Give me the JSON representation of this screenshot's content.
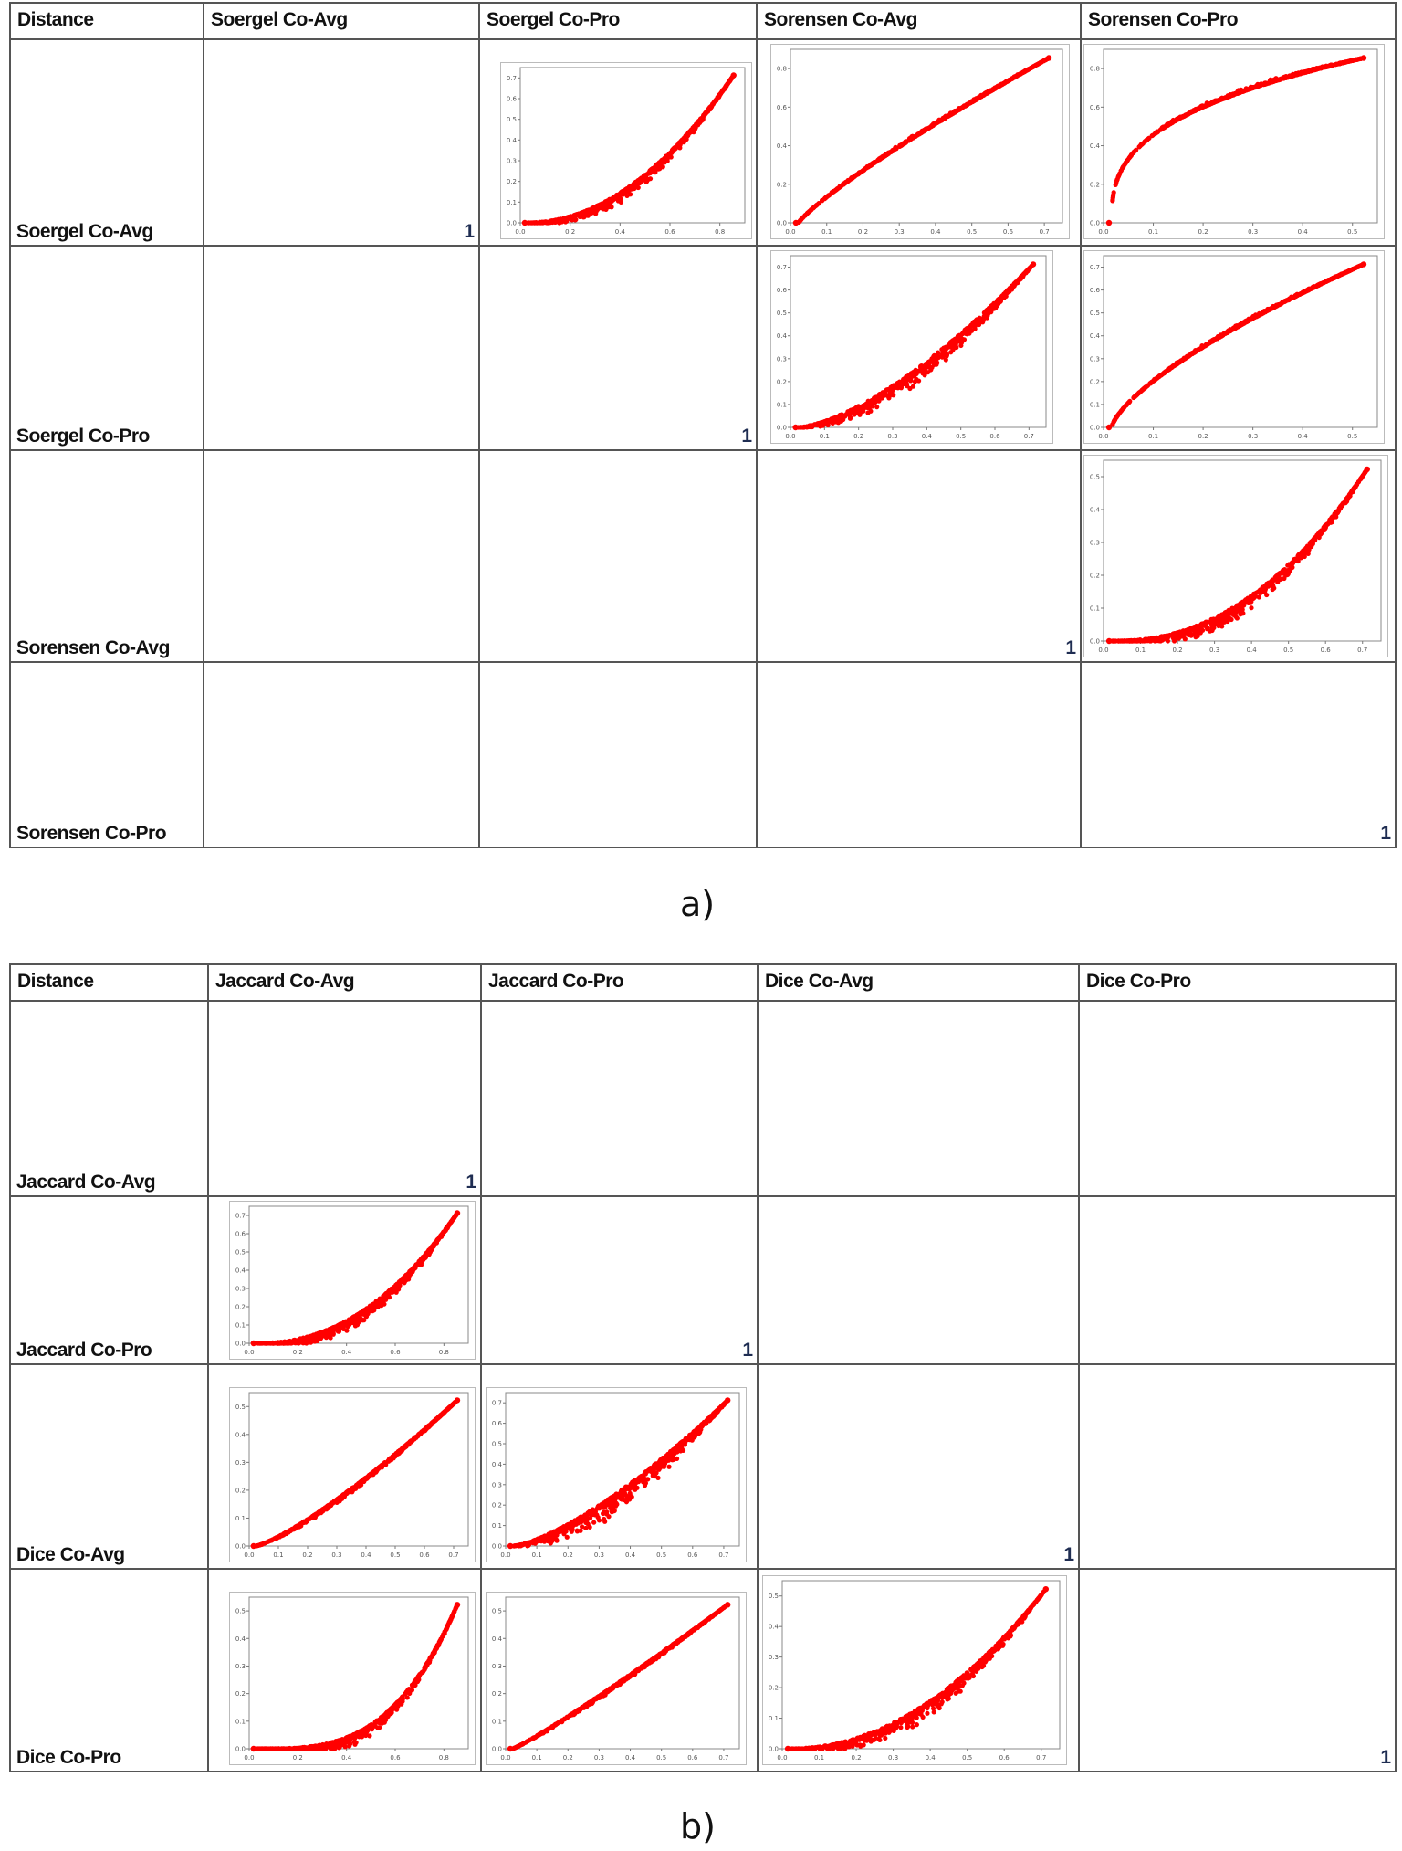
{
  "panels": [
    {
      "caption": "a)",
      "corner": "Distance",
      "columns": [
        "Soergel Co-Avg",
        "Soergel Co-Pro",
        "Sorensen Co-Avg",
        "Sorensen Co-Pro"
      ],
      "rows": [
        "Soergel Co-Avg",
        "Soergel Co-Pro",
        "Sorensen Co-Avg",
        "Sorensen Co-Pro"
      ],
      "diagonal_value": "1",
      "marker_color": "#ff0000"
    },
    {
      "caption": "b)",
      "corner": "Distance",
      "columns": [
        "Jaccard Co-Avg",
        "Jaccard Co-Pro",
        "Dice Co-Avg",
        "Dice Co-Pro"
      ],
      "rows": [
        "Jaccard Co-Avg",
        "Jaccard Co-Pro",
        "Dice Co-Avg",
        "Dice Co-Pro"
      ],
      "diagonal_value": "1",
      "marker_color": "#ff0000"
    }
  ],
  "chart_data": [
    {
      "type": "scatter",
      "panel": "a",
      "row": "Soergel Co-Avg",
      "col": "Soergel Co-Pro",
      "curve": "convex",
      "exponent": 2.0,
      "spread": 0.07,
      "xlim": [
        0,
        0.9
      ],
      "ylim": [
        0,
        0.75
      ],
      "xticks": [
        "0.0",
        "0.2",
        "0.4",
        "0.6",
        "0.8"
      ],
      "yticks": [
        "0.0",
        "0.1",
        "0.2",
        "0.3",
        "0.4",
        "0.5",
        "0.6",
        "0.7"
      ]
    },
    {
      "type": "scatter",
      "panel": "a",
      "row": "Soergel Co-Avg",
      "col": "Sorensen Co-Avg",
      "curve": "concave",
      "exponent": 0.85,
      "spread": 0.03,
      "xlim": [
        0,
        0.75
      ],
      "ylim": [
        0,
        0.9
      ],
      "xticks": [
        "0.0",
        "0.1",
        "0.2",
        "0.3",
        "0.4",
        "0.5",
        "0.6",
        "0.7"
      ],
      "yticks": [
        "0.0",
        "0.2",
        "0.4",
        "0.6",
        "0.8"
      ]
    },
    {
      "type": "scatter",
      "panel": "a",
      "row": "Soergel Co-Avg",
      "col": "Sorensen Co-Pro",
      "curve": "concave",
      "exponent": 0.35,
      "spread": 0.04,
      "xlim": [
        0,
        0.55
      ],
      "ylim": [
        0,
        0.9
      ],
      "xticks": [
        "0.0",
        "0.1",
        "0.2",
        "0.3",
        "0.4",
        "0.5"
      ],
      "yticks": [
        "0.0",
        "0.2",
        "0.4",
        "0.6",
        "0.8"
      ]
    },
    {
      "type": "scatter",
      "panel": "a",
      "row": "Soergel Co-Pro",
      "col": "Sorensen Co-Avg",
      "curve": "convex",
      "exponent": 1.5,
      "spread": 0.1,
      "xlim": [
        0,
        0.75
      ],
      "ylim": [
        0,
        0.75
      ],
      "xticks": [
        "0.0",
        "0.1",
        "0.2",
        "0.3",
        "0.4",
        "0.5",
        "0.6",
        "0.7"
      ],
      "yticks": [
        "0.0",
        "0.1",
        "0.2",
        "0.3",
        "0.4",
        "0.5",
        "0.6",
        "0.7"
      ]
    },
    {
      "type": "scatter",
      "panel": "a",
      "row": "Soergel Co-Pro",
      "col": "Sorensen Co-Pro",
      "curve": "concave",
      "exponent": 0.7,
      "spread": 0.03,
      "xlim": [
        0,
        0.55
      ],
      "ylim": [
        0,
        0.75
      ],
      "xticks": [
        "0.0",
        "0.1",
        "0.2",
        "0.3",
        "0.4",
        "0.5"
      ],
      "yticks": [
        "0.0",
        "0.1",
        "0.2",
        "0.3",
        "0.4",
        "0.5",
        "0.6",
        "0.7"
      ]
    },
    {
      "type": "scatter",
      "panel": "a",
      "row": "Sorensen Co-Avg",
      "col": "Sorensen Co-Pro",
      "curve": "convex",
      "exponent": 2.2,
      "spread": 0.09,
      "xlim": [
        0,
        0.75
      ],
      "ylim": [
        0,
        0.55
      ],
      "xticks": [
        "0.0",
        "0.1",
        "0.2",
        "0.3",
        "0.4",
        "0.5",
        "0.6",
        "0.7"
      ],
      "yticks": [
        "0.0",
        "0.1",
        "0.2",
        "0.3",
        "0.4",
        "0.5"
      ]
    },
    {
      "type": "scatter",
      "panel": "b",
      "row": "Jaccard Co-Pro",
      "col": "Jaccard Co-Avg",
      "curve": "convex",
      "exponent": 2.2,
      "spread": 0.09,
      "xlim": [
        0,
        0.9
      ],
      "ylim": [
        0,
        0.75
      ],
      "xticks": [
        "0.0",
        "0.2",
        "0.4",
        "0.6",
        "0.8"
      ],
      "yticks": [
        "0.0",
        "0.1",
        "0.2",
        "0.3",
        "0.4",
        "0.5",
        "0.6",
        "0.7"
      ]
    },
    {
      "type": "scatter",
      "panel": "b",
      "row": "Dice Co-Avg",
      "col": "Jaccard Co-Avg",
      "curve": "convex",
      "exponent": 1.25,
      "spread": 0.03,
      "xlim": [
        0,
        0.75
      ],
      "ylim": [
        0,
        0.55
      ],
      "xticks": [
        "0.0",
        "0.1",
        "0.2",
        "0.3",
        "0.4",
        "0.5",
        "0.6",
        "0.7"
      ],
      "yticks": [
        "0.0",
        "0.1",
        "0.2",
        "0.3",
        "0.4",
        "0.5"
      ]
    },
    {
      "type": "scatter",
      "panel": "b",
      "row": "Dice Co-Avg",
      "col": "Jaccard Co-Pro",
      "curve": "convex",
      "exponent": 1.4,
      "spread": 0.15,
      "xlim": [
        0,
        0.75
      ],
      "ylim": [
        0,
        0.75
      ],
      "xticks": [
        "0.0",
        "0.1",
        "0.2",
        "0.3",
        "0.4",
        "0.5",
        "0.6",
        "0.7"
      ],
      "yticks": [
        "0.0",
        "0.1",
        "0.2",
        "0.3",
        "0.4",
        "0.5",
        "0.6",
        "0.7"
      ]
    },
    {
      "type": "scatter",
      "panel": "b",
      "row": "Dice Co-Pro",
      "col": "Jaccard Co-Avg",
      "curve": "convex",
      "exponent": 3.2,
      "spread": 0.08,
      "xlim": [
        0,
        0.9
      ],
      "ylim": [
        0,
        0.55
      ],
      "xticks": [
        "0.0",
        "0.2",
        "0.4",
        "0.6",
        "0.8"
      ],
      "yticks": [
        "0.0",
        "0.1",
        "0.2",
        "0.3",
        "0.4",
        "0.5"
      ]
    },
    {
      "type": "scatter",
      "panel": "b",
      "row": "Dice Co-Pro",
      "col": "Jaccard Co-Pro",
      "curve": "convex",
      "exponent": 1.1,
      "spread": 0.025,
      "xlim": [
        0,
        0.75
      ],
      "ylim": [
        0,
        0.55
      ],
      "xticks": [
        "0.0",
        "0.1",
        "0.2",
        "0.3",
        "0.4",
        "0.5",
        "0.6",
        "0.7"
      ],
      "yticks": [
        "0.0",
        "0.1",
        "0.2",
        "0.3",
        "0.4",
        "0.5"
      ]
    },
    {
      "type": "scatter",
      "panel": "b",
      "row": "Dice Co-Pro",
      "col": "Dice Co-Avg",
      "curve": "convex",
      "exponent": 2.0,
      "spread": 0.1,
      "xlim": [
        0,
        0.75
      ],
      "ylim": [
        0,
        0.55
      ],
      "xticks": [
        "0.0",
        "0.1",
        "0.2",
        "0.3",
        "0.4",
        "0.5",
        "0.6",
        "0.7"
      ],
      "yticks": [
        "0.0",
        "0.1",
        "0.2",
        "0.3",
        "0.4",
        "0.5"
      ]
    }
  ]
}
